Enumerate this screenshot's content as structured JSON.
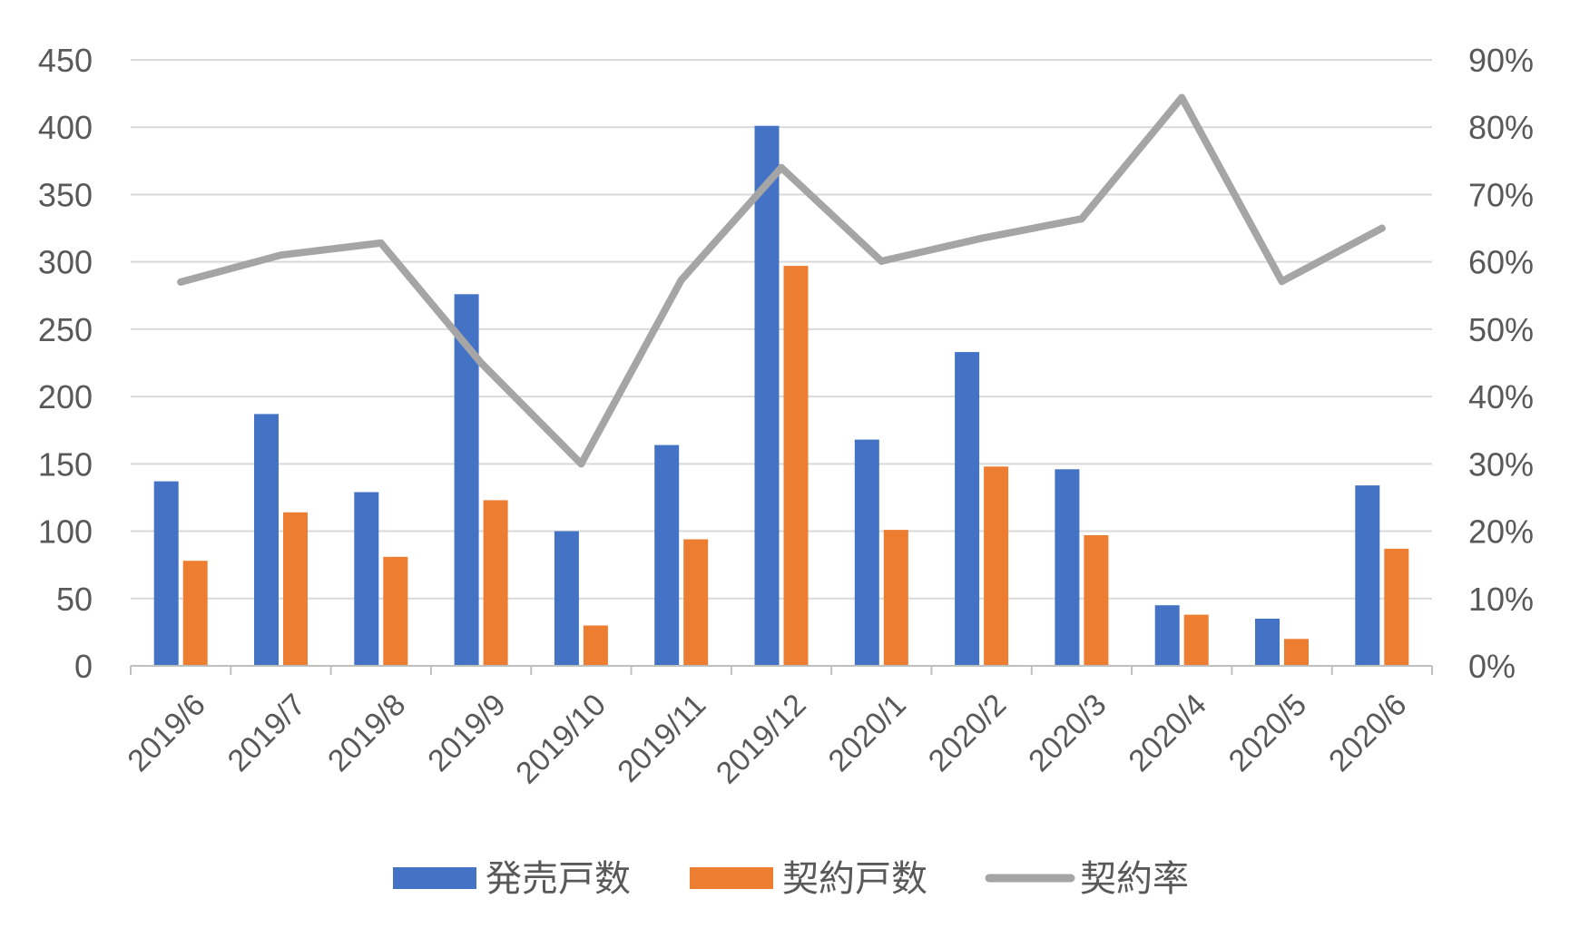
{
  "chart_data": {
    "type": "bar",
    "categories": [
      "2019/6",
      "2019/7",
      "2019/8",
      "2019/9",
      "2019/10",
      "2019/11",
      "2019/12",
      "2020/1",
      "2020/2",
      "2020/3",
      "2020/4",
      "2020/5",
      "2020/6"
    ],
    "series": [
      {
        "name": "発売戸数",
        "kind": "bar",
        "axis": "left",
        "color": "#4472C4",
        "values": [
          137,
          187,
          129,
          276,
          100,
          164,
          401,
          168,
          233,
          146,
          45,
          35,
          134
        ]
      },
      {
        "name": "契約戸数",
        "kind": "bar",
        "axis": "left",
        "color": "#ED7D31",
        "values": [
          78,
          114,
          81,
          123,
          30,
          94,
          297,
          101,
          148,
          97,
          38,
          20,
          87
        ]
      },
      {
        "name": "契約率",
        "kind": "line",
        "axis": "right",
        "color": "#A5A5A5",
        "values": [
          57,
          61,
          62.8,
          45,
          30,
          57.3,
          74,
          60.1,
          63.5,
          66.4,
          84.4,
          57.1,
          65
        ]
      }
    ],
    "ylim_left": [
      0,
      450
    ],
    "yticks_left": [
      "0",
      "50",
      "100",
      "150",
      "200",
      "250",
      "300",
      "350",
      "400",
      "450"
    ],
    "ylim_right": [
      0,
      90
    ],
    "yticks_right": [
      "0%",
      "10%",
      "20%",
      "30%",
      "40%",
      "50%",
      "60%",
      "70%",
      "80%",
      "90%"
    ],
    "grid": true,
    "legend_position": "bottom"
  }
}
